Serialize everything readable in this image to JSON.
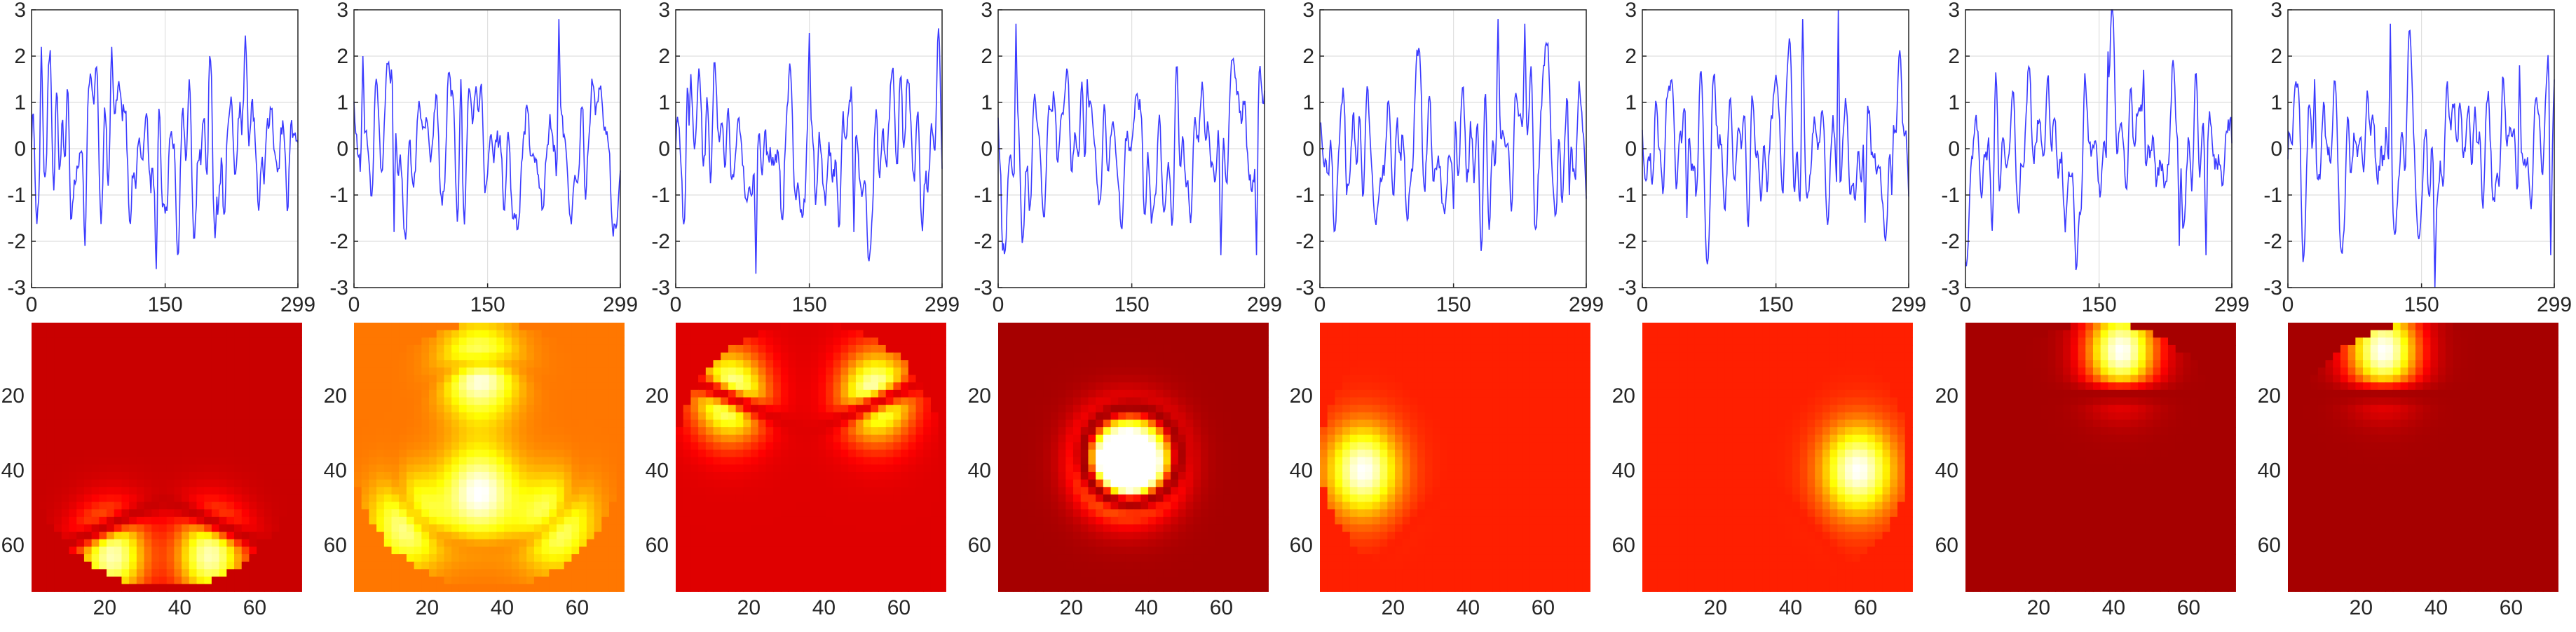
{
  "chart_data": {
    "type": "subplot-grid",
    "colors": {
      "signal": "#3b3bff",
      "colormap": "hot"
    },
    "line_panels": {
      "type": "line",
      "count": 8,
      "samples": 300,
      "xlim": [
        0,
        299
      ],
      "ylim": [
        -3,
        3
      ],
      "xticks": [
        0,
        150,
        299
      ],
      "yticks": [
        -3,
        -2,
        -1,
        0,
        1,
        2,
        3
      ],
      "grid": true,
      "series": [
        {
          "peaks": [
            [
              11,
              2.2
            ],
            [
              60,
              -2.1
            ],
            [
              90,
              2.2
            ],
            [
              140,
              -2.6
            ],
            [
              200,
              2.0
            ],
            [
              25,
              -0.9
            ]
          ]
        },
        {
          "peaks": [
            [
              10,
              2.0
            ],
            [
              45,
              -1.8
            ],
            [
              230,
              2.8
            ],
            [
              120,
              1.5
            ],
            [
              260,
              -1.1
            ]
          ]
        },
        {
          "peaks": [
            [
              15,
              0.5
            ],
            [
              90,
              -2.7
            ],
            [
              150,
              2.5
            ],
            [
              200,
              -1.8
            ],
            [
              295,
              2.6
            ]
          ]
        },
        {
          "peaks": [
            [
              20,
              2.7
            ],
            [
              5,
              -2.2
            ],
            [
              100,
              1.5
            ],
            [
              250,
              -2.3
            ],
            [
              290,
              -2.3
            ]
          ]
        },
        {
          "peaks": [
            [
              200,
              2.8
            ],
            [
              230,
              2.7
            ],
            [
              150,
              -1.3
            ],
            [
              30,
              -1.0
            ],
            [
              280,
              -1.0
            ]
          ]
        },
        {
          "peaks": [
            [
              220,
              3.0
            ],
            [
              180,
              2.8
            ],
            [
              50,
              -1.5
            ],
            [
              250,
              -1.6
            ],
            [
              280,
              -1.0
            ]
          ]
        },
        {
          "peaks": [
            [
              160,
              2.1
            ],
            [
              270,
              -2.3
            ],
            [
              240,
              -2.1
            ],
            [
              200,
              1.7
            ],
            [
              60,
              -1.4
            ]
          ]
        },
        {
          "peaks": [
            [
              115,
              2.7
            ],
            [
              165,
              -3.0
            ],
            [
              30,
              1.5
            ],
            [
              260,
              1.8
            ],
            [
              295,
              -2.3
            ]
          ]
        }
      ]
    },
    "image_panels": {
      "type": "heatmap",
      "count": 8,
      "grid_size": 71,
      "xticks": [
        20,
        40,
        60
      ],
      "yticks": [
        20,
        40,
        60
      ],
      "maps": [
        {
          "background": 0.28,
          "mask_circle": true,
          "lobes": [
            [
              22,
              63,
              0.9
            ],
            [
              48,
              63,
              0.9
            ]
          ],
          "node": "v-bottom"
        },
        {
          "background": 0.55,
          "mask_circle": true,
          "lobes": [
            [
              34,
              14,
              1.0
            ],
            [
              34,
              46,
              1.0
            ],
            [
              15,
              54,
              0.8
            ],
            [
              54,
              54,
              0.8
            ]
          ],
          "node": "rings"
        },
        {
          "background": 0.32,
          "mask_circle": true,
          "lobes": [
            [
              15,
              20,
              1.0
            ],
            [
              54,
              20,
              1.0
            ]
          ],
          "node": "v-top"
        },
        {
          "background": 0.22,
          "mask_circle": false,
          "lobes": [
            [
              31,
              38,
              1.0
            ],
            [
              39,
              38,
              1.0
            ]
          ],
          "node": "ring"
        },
        {
          "background": 0.42,
          "mask_circle": true,
          "lobes": [
            [
              12,
              40,
              1.0
            ]
          ],
          "node": "chevron-right"
        },
        {
          "background": 0.42,
          "mask_circle": true,
          "lobes": [
            [
              58,
              40,
              1.0
            ]
          ],
          "node": "chevron-left"
        },
        {
          "background": 0.22,
          "mask_circle": true,
          "lobes": [
            [
              42,
              8,
              1.0
            ]
          ],
          "node": "cap-top"
        },
        {
          "background": 0.22,
          "mask_circle": true,
          "lobes": [
            [
              26,
              8,
              1.0
            ]
          ],
          "node": "cap-top"
        }
      ]
    }
  }
}
